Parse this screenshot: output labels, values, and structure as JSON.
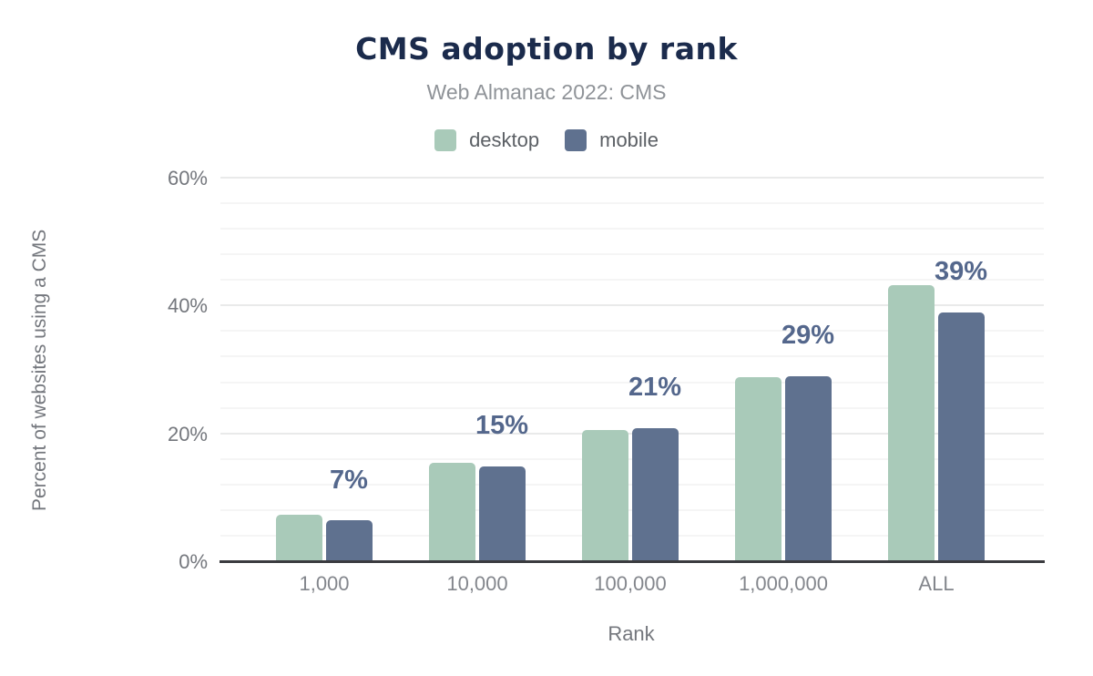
{
  "header": {
    "title": "CMS adoption by rank",
    "subtitle": "Web Almanac 2022: CMS"
  },
  "chart_data": {
    "type": "bar",
    "title": "CMS adoption by rank",
    "subtitle": "Web Almanac 2022: CMS",
    "categories": [
      "1,000",
      "10,000",
      "100,000",
      "1,000,000",
      "ALL"
    ],
    "series": [
      {
        "name": "desktop",
        "color": "#a9cab9",
        "values": [
          7.4,
          15.5,
          20.6,
          28.9,
          43.3
        ]
      },
      {
        "name": "mobile",
        "color": "#5f718f",
        "values": [
          6.5,
          15.0,
          20.9,
          29.1,
          39.1
        ]
      }
    ],
    "data_labels": [
      "7%",
      "15%",
      "21%",
      "29%",
      "39%"
    ],
    "xlabel": "Rank",
    "ylabel": "Percent of websites using a CMS",
    "y_ticks": [
      {
        "value": 0,
        "label": "0%"
      },
      {
        "value": 20,
        "label": "20%"
      },
      {
        "value": 40,
        "label": "40%"
      },
      {
        "value": 60,
        "label": "60%"
      }
    ],
    "ylim": [
      0,
      60
    ],
    "minor_grid_step": 4,
    "grid": true,
    "legend_position": "top"
  }
}
